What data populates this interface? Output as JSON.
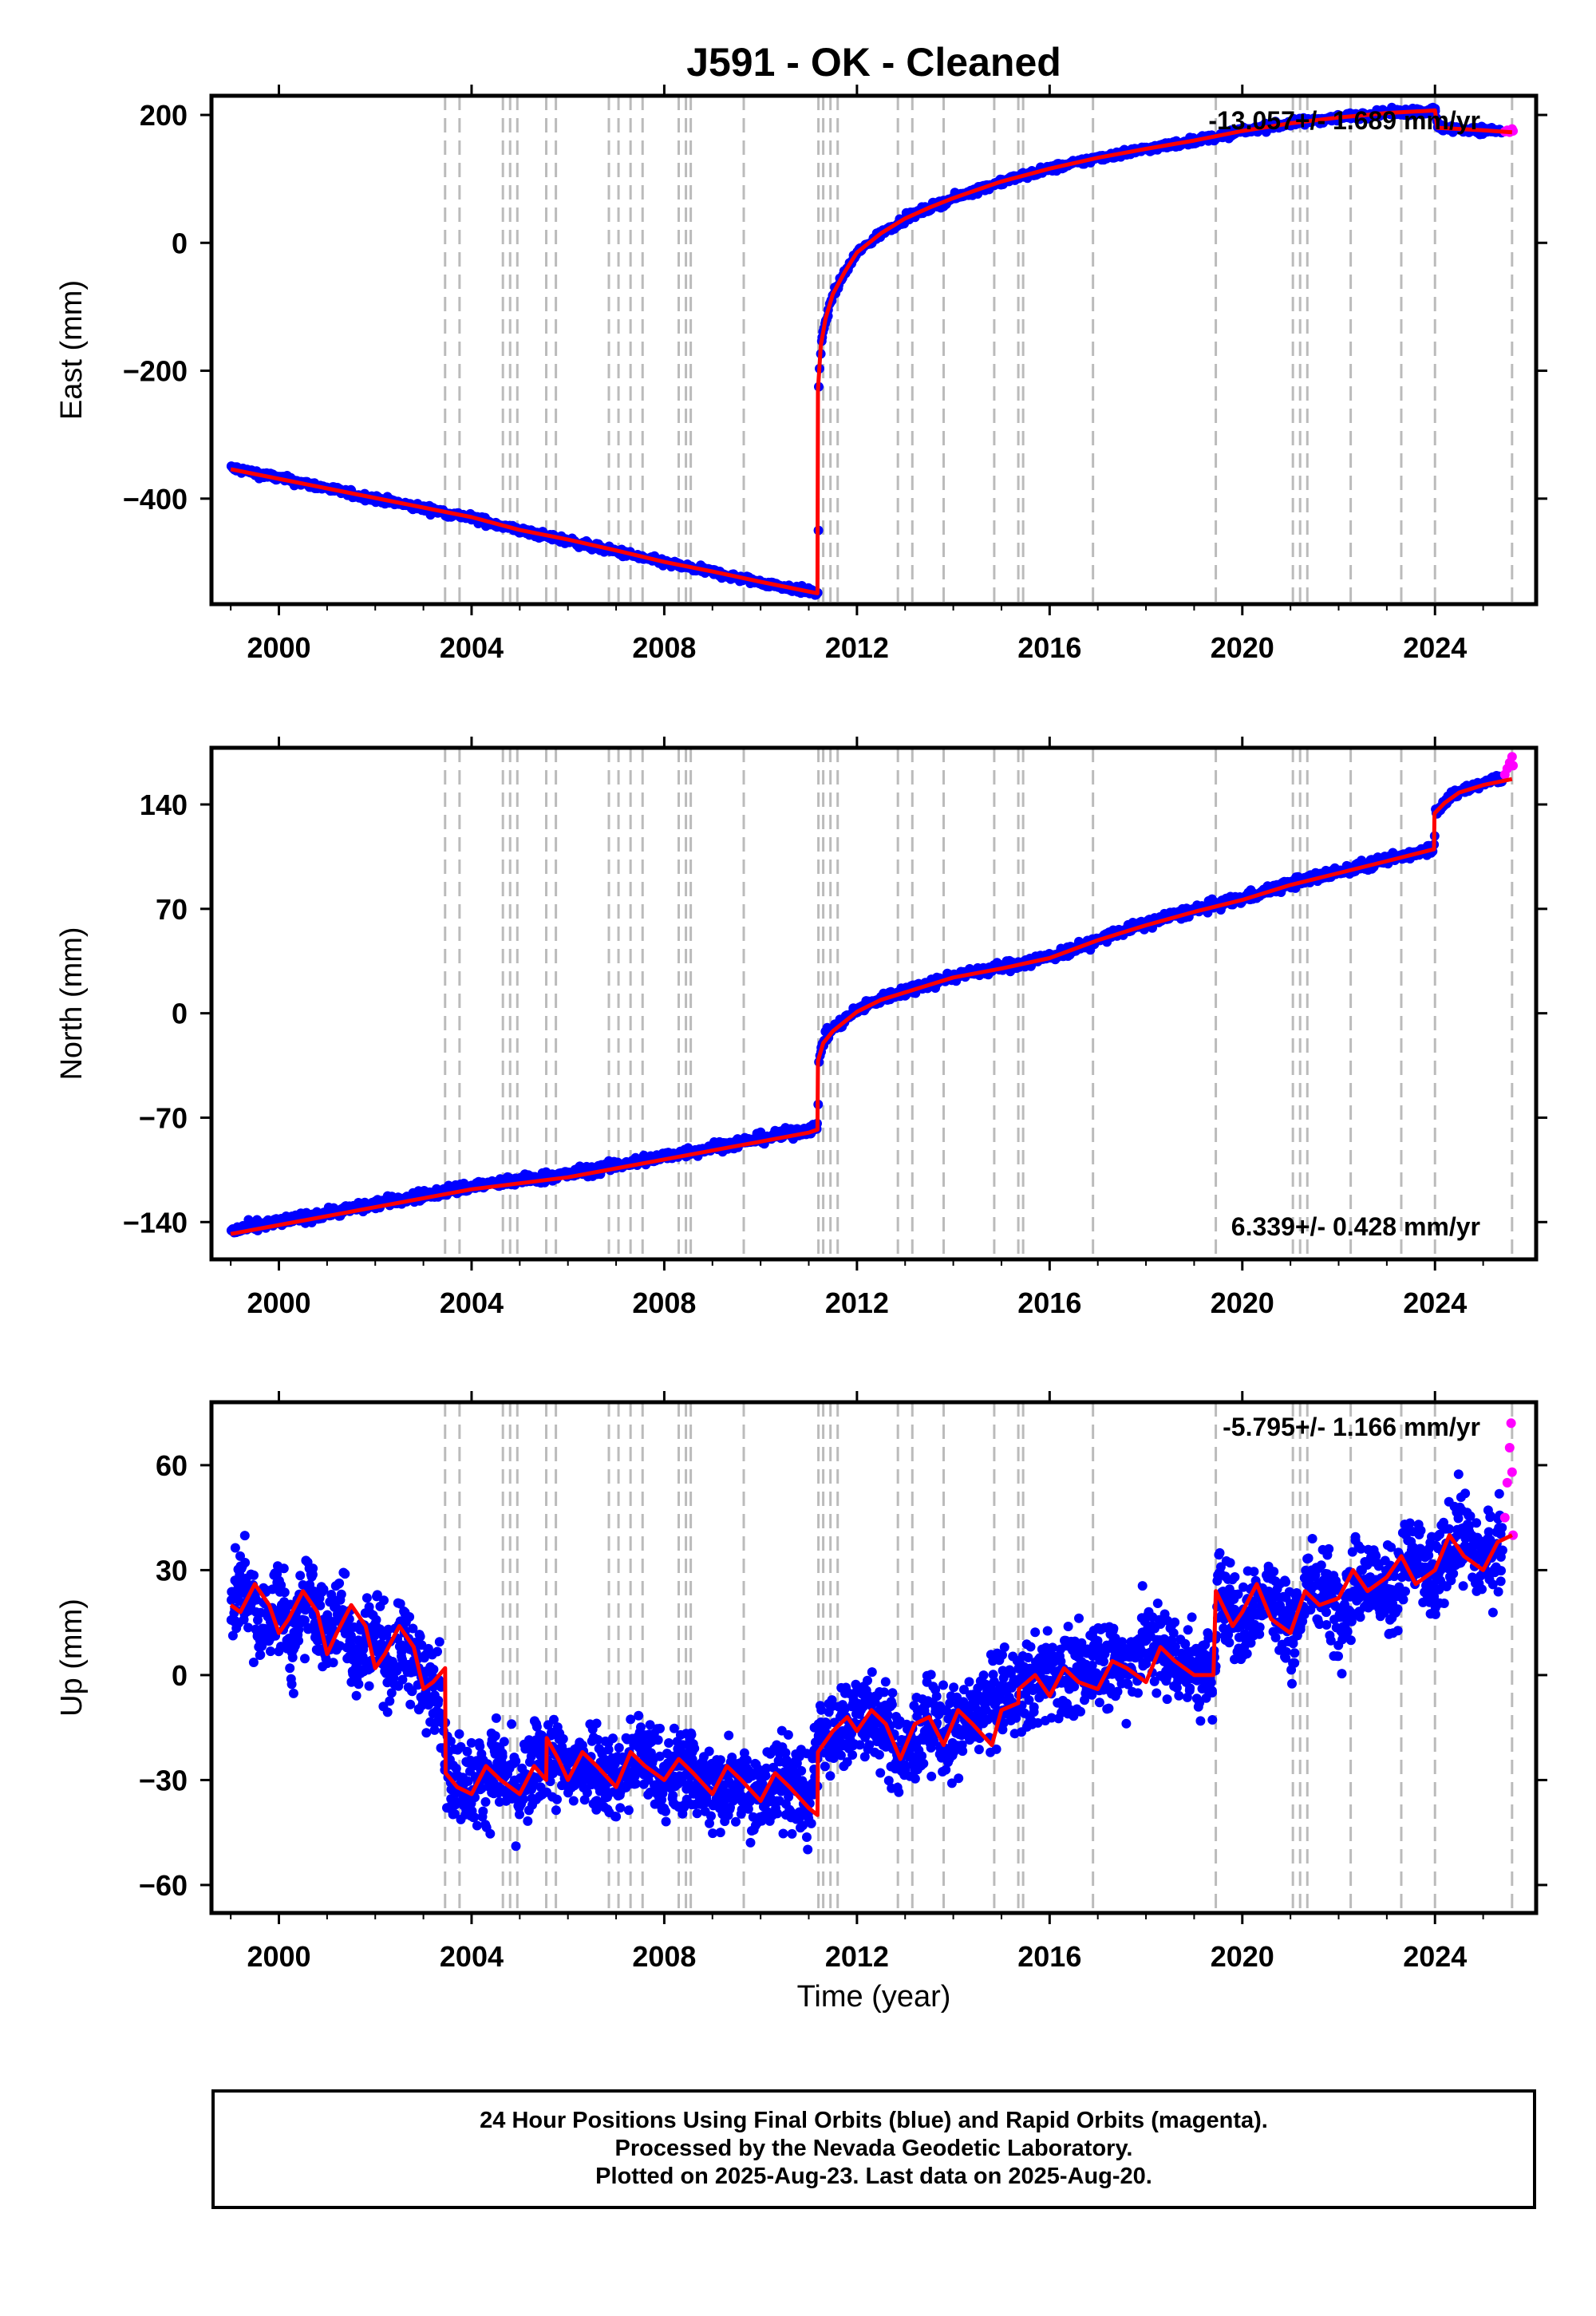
{
  "title": "J591  - OK - Cleaned",
  "colors": {
    "final_orbits": "#0000ff",
    "rapid_orbits": "#ff00ff",
    "model": "#ff0000",
    "event_lines": "#bbbbbb",
    "frame": "#000000"
  },
  "footer": {
    "line1": "24 Hour Positions Using Final Orbits (blue) and Rapid Orbits (magenta).",
    "line2": "Processed by the Nevada Geodetic Laboratory.",
    "line3": "Plotted on 2025-Aug-23. Last data on 2025-Aug-20."
  },
  "chart_data": [
    {
      "type": "scatter",
      "panel": "east",
      "ylabel": "East (mm)",
      "xlabel": "",
      "rate_label": "-13.057+/- 1.689 mm/yr",
      "xlim": [
        1998.6,
        2026.1
      ],
      "ylim": [
        -565,
        230
      ],
      "xticks": [
        2000,
        2004,
        2008,
        2012,
        2016,
        2020,
        2024
      ],
      "yticks": [
        200,
        0,
        -200,
        -400
      ],
      "ytick_labels": [
        "200",
        "0",
        "−200",
        "−400"
      ],
      "series": [
        {
          "kind": "final",
          "x": [
            1999.0,
            1999.5,
            2000.0,
            2000.5,
            2001.0,
            2001.5,
            2002.0,
            2002.5,
            2003.0,
            2003.5,
            2004.0,
            2004.5,
            2005.0,
            2005.5,
            2006.0,
            2006.5,
            2007.0,
            2007.5,
            2008.0,
            2008.5,
            2009.0,
            2009.5,
            2010.0,
            2010.5,
            2011.0,
            2011.18,
            2011.2,
            2011.25,
            2011.35,
            2011.5,
            2011.75,
            2012.0,
            2012.5,
            2013.0,
            2013.5,
            2014.0,
            2014.5,
            2015.0,
            2015.5,
            2016.0,
            2016.5,
            2017.0,
            2017.5,
            2018.0,
            2018.5,
            2019.0,
            2019.5,
            2020.0,
            2020.5,
            2021.0,
            2021.5,
            2022.0,
            2022.5,
            2023.0,
            2023.5,
            2024.0,
            2024.05,
            2024.5,
            2025.0,
            2025.4
          ],
          "y": [
            -352,
            -360,
            -368,
            -376,
            -384,
            -393,
            -400,
            -408,
            -415,
            -423,
            -430,
            -440,
            -450,
            -458,
            -466,
            -475,
            -483,
            -492,
            -500,
            -508,
            -515,
            -524,
            -531,
            -538,
            -545,
            -548,
            -230,
            -160,
            -120,
            -80,
            -45,
            -15,
            15,
            38,
            55,
            70,
            83,
            96,
            106,
            116,
            124,
            133,
            140,
            147,
            153,
            160,
            166,
            175,
            181,
            187,
            192,
            196,
            200,
            203,
            205,
            207,
            180,
            178,
            176,
            175
          ]
        },
        {
          "kind": "rapid",
          "x": [
            2025.45,
            2025.5,
            2025.55,
            2025.6,
            2025.62
          ],
          "y": [
            174,
            176,
            173,
            178,
            175
          ]
        },
        {
          "kind": "model",
          "x": [
            1999.0,
            2000.0,
            2001.0,
            2002.0,
            2003.0,
            2004.0,
            2005.0,
            2006.0,
            2007.0,
            2008.0,
            2009.0,
            2010.0,
            2011.18,
            2011.19,
            2011.25,
            2011.35,
            2011.5,
            2011.75,
            2012.0,
            2012.5,
            2013.0,
            2013.5,
            2014.0,
            2014.5,
            2015.0,
            2015.5,
            2016.0,
            2017.0,
            2018.0,
            2019.0,
            2020.0,
            2021.0,
            2022.0,
            2023.0,
            2024.0,
            2024.05,
            2025.0,
            2025.6
          ],
          "y": [
            -354,
            -369,
            -384,
            -399,
            -414,
            -429,
            -449,
            -464,
            -481,
            -499,
            -514,
            -530,
            -548,
            -230,
            -160,
            -118,
            -80,
            -45,
            -15,
            15,
            38,
            55,
            70,
            83,
            96,
            106,
            116,
            133,
            147,
            160,
            175,
            187,
            196,
            203,
            207,
            180,
            176,
            173
          ]
        }
      ]
    },
    {
      "type": "scatter",
      "panel": "north",
      "ylabel": "North (mm)",
      "xlabel": "",
      "rate_label": "6.339+/- 0.428 mm/yr",
      "xlim": [
        1998.6,
        2026.1
      ],
      "ylim": [
        -165,
        178
      ],
      "xticks": [
        2000,
        2004,
        2008,
        2012,
        2016,
        2020,
        2024
      ],
      "yticks": [
        140,
        70,
        0,
        -70,
        -140
      ],
      "ytick_labels": [
        "140",
        "70",
        "0",
        "−70",
        "−140"
      ],
      "series": [
        {
          "kind": "final",
          "x": [
            1999.0,
            1999.5,
            2000.0,
            2000.5,
            2001.0,
            2001.5,
            2002.0,
            2002.5,
            2003.0,
            2003.5,
            2004.0,
            2004.5,
            2005.0,
            2005.5,
            2006.0,
            2006.5,
            2007.0,
            2007.5,
            2008.0,
            2008.5,
            2009.0,
            2009.5,
            2010.0,
            2010.5,
            2011.0,
            2011.18,
            2011.2,
            2011.3,
            2011.5,
            2012.0,
            2012.5,
            2013.0,
            2013.5,
            2014.0,
            2014.5,
            2015.0,
            2015.5,
            2016.0,
            2016.5,
            2017.0,
            2017.5,
            2018.0,
            2018.5,
            2019.0,
            2019.5,
            2020.0,
            2020.5,
            2021.0,
            2021.5,
            2022.0,
            2022.5,
            2023.0,
            2023.5,
            2023.98,
            2024.0,
            2024.2,
            2024.5,
            2025.0,
            2025.4
          ],
          "y": [
            -146,
            -143,
            -140,
            -137,
            -134,
            -131,
            -128,
            -125,
            -122,
            -119,
            -116,
            -114,
            -112,
            -110,
            -108,
            -105,
            -102,
            -99,
            -96,
            -93,
            -90,
            -87,
            -84,
            -81,
            -78,
            -76,
            -30,
            -18,
            -10,
            2,
            10,
            15,
            20,
            25,
            28,
            31,
            34,
            38,
            43,
            49,
            55,
            60,
            65,
            69,
            73,
            77,
            82,
            87,
            91,
            95,
            99,
            103,
            107,
            112,
            135,
            142,
            149,
            154,
            158
          ]
        },
        {
          "kind": "rapid",
          "x": [
            2025.45,
            2025.5,
            2025.55,
            2025.6,
            2025.62
          ],
          "y": [
            160,
            164,
            168,
            172,
            166
          ]
        },
        {
          "kind": "model",
          "x": [
            1999.0,
            2000.0,
            2001.0,
            2002.0,
            2003.0,
            2004.0,
            2005.0,
            2006.0,
            2007.0,
            2008.0,
            2009.0,
            2010.0,
            2011.0,
            2011.18,
            2011.19,
            2011.3,
            2011.5,
            2012.0,
            2012.5,
            2013.0,
            2013.5,
            2014.0,
            2015.0,
            2016.0,
            2017.0,
            2018.0,
            2019.0,
            2020.0,
            2021.0,
            2022.0,
            2023.0,
            2023.98,
            2023.99,
            2024.2,
            2024.5,
            2025.0,
            2025.6
          ],
          "y": [
            -148,
            -142,
            -136,
            -130,
            -124,
            -118,
            -114,
            -110,
            -104,
            -98,
            -92,
            -86,
            -80,
            -78,
            -32,
            -20,
            -12,
            1,
            9,
            14,
            19,
            24,
            30,
            37,
            49,
            59,
            68,
            76,
            86,
            94,
            102,
            110,
            134,
            141,
            148,
            153,
            157
          ]
        }
      ]
    },
    {
      "type": "scatter",
      "panel": "up",
      "ylabel": "Up (mm)",
      "xlabel": "Time (year)",
      "rate_label": "-5.795+/- 1.166 mm/yr",
      "xlim": [
        1998.6,
        2026.1
      ],
      "ylim": [
        -68,
        78
      ],
      "xticks": [
        2000,
        2004,
        2008,
        2012,
        2016,
        2020,
        2024
      ],
      "yticks": [
        60,
        30,
        0,
        -30,
        -60
      ],
      "ytick_labels": [
        "60",
        "30",
        "0",
        "−30",
        "−60"
      ],
      "series": [
        {
          "kind": "final",
          "x": [
            1999.0,
            1999.3,
            1999.6,
            2000.0,
            2000.3,
            2000.6,
            2001.0,
            2001.3,
            2001.6,
            2002.0,
            2002.3,
            2002.6,
            2003.0,
            2003.3,
            2003.5,
            2003.7,
            2004.0,
            2004.5,
            2005.0,
            2005.5,
            2006.0,
            2006.5,
            2007.0,
            2007.5,
            2008.0,
            2008.5,
            2009.0,
            2009.5,
            2010.0,
            2010.5,
            2011.0,
            2011.2,
            2011.5,
            2012.0,
            2012.5,
            2013.0,
            2013.5,
            2014.0,
            2014.5,
            2015.0,
            2015.5,
            2016.0,
            2016.5,
            2017.0,
            2017.5,
            2018.0,
            2018.5,
            2019.0,
            2019.4,
            2019.5,
            2020.0,
            2020.5,
            2021.0,
            2021.5,
            2022.0,
            2022.5,
            2023.0,
            2023.5,
            2024.0,
            2024.5,
            2025.0,
            2025.4
          ],
          "y": [
            20,
            26,
            12,
            22,
            8,
            24,
            10,
            20,
            4,
            14,
            2,
            10,
            -4,
            0,
            -30,
            -28,
            -32,
            -26,
            -34,
            -22,
            -28,
            -24,
            -30,
            -22,
            -30,
            -26,
            -34,
            -28,
            -36,
            -28,
            -38,
            -16,
            -18,
            -10,
            -14,
            -24,
            -12,
            -18,
            -10,
            -6,
            -4,
            2,
            -2,
            6,
            2,
            10,
            6,
            2,
            0,
            26,
            14,
            24,
            12,
            28,
            18,
            30,
            22,
            34,
            26,
            42,
            32,
            38
          ]
        },
        {
          "kind": "rapid",
          "x": [
            2025.45,
            2025.5,
            2025.55,
            2025.58,
            2025.6,
            2025.62
          ],
          "y": [
            45,
            55,
            65,
            72,
            58,
            40
          ]
        },
        {
          "kind": "model",
          "x": [
            1999.0,
            1999.2,
            1999.5,
            1999.8,
            2000.0,
            2000.2,
            2000.5,
            2000.8,
            2001.0,
            2001.2,
            2001.5,
            2001.8,
            2002.0,
            2002.2,
            2002.5,
            2002.8,
            2003.0,
            2003.2,
            2003.45,
            2003.46,
            2003.7,
            2004.0,
            2004.3,
            2004.6,
            2005.0,
            2005.3,
            2005.55,
            2005.56,
            2005.8,
            2006.0,
            2006.3,
            2006.6,
            2007.0,
            2007.3,
            2007.6,
            2008.0,
            2008.3,
            2008.6,
            2009.0,
            2009.3,
            2009.6,
            2010.0,
            2010.3,
            2010.6,
            2011.0,
            2011.18,
            2011.19,
            2011.5,
            2011.8,
            2012.0,
            2012.3,
            2012.6,
            2012.9,
            2013.2,
            2013.5,
            2013.8,
            2014.1,
            2014.4,
            2014.8,
            2015.0,
            2015.35,
            2015.36,
            2015.7,
            2016.0,
            2016.3,
            2016.6,
            2017.0,
            2017.3,
            2017.6,
            2018.0,
            2018.3,
            2018.6,
            2019.0,
            2019.4,
            2019.45,
            2019.8,
            2020.0,
            2020.3,
            2020.6,
            2021.0,
            2021.3,
            2021.6,
            2022.0,
            2022.3,
            2022.6,
            2023.0,
            2023.3,
            2023.6,
            2024.0,
            2024.3,
            2024.6,
            2025.0,
            2025.3,
            2025.6
          ],
          "y": [
            20,
            18,
            26,
            20,
            12,
            16,
            24,
            18,
            6,
            12,
            20,
            14,
            2,
            6,
            14,
            8,
            -4,
            -2,
            2,
            -28,
            -32,
            -34,
            -26,
            -30,
            -34,
            -26,
            -30,
            -18,
            -24,
            -30,
            -22,
            -26,
            -32,
            -22,
            -26,
            -30,
            -24,
            -28,
            -34,
            -26,
            -30,
            -36,
            -28,
            -32,
            -38,
            -40,
            -22,
            -16,
            -12,
            -16,
            -10,
            -14,
            -24,
            -14,
            -12,
            -20,
            -10,
            -14,
            -20,
            -10,
            -8,
            -4,
            0,
            -6,
            2,
            -2,
            -4,
            4,
            2,
            -2,
            8,
            4,
            0,
            0,
            24,
            14,
            18,
            26,
            16,
            12,
            24,
            20,
            22,
            30,
            24,
            28,
            34,
            26,
            30,
            40,
            34,
            30,
            38,
            40
          ]
        }
      ]
    }
  ],
  "event_lines_years": [
    2003.45,
    2003.75,
    2004.65,
    2004.8,
    2004.95,
    2005.55,
    2005.75,
    2006.85,
    2007.05,
    2007.3,
    2007.55,
    2008.3,
    2008.45,
    2008.55,
    2009.65,
    2011.2,
    2011.3,
    2011.45,
    2011.6,
    2012.85,
    2013.15,
    2013.8,
    2014.85,
    2015.35,
    2015.45,
    2016.9,
    2019.45,
    2021.05,
    2021.2,
    2021.35,
    2022.25,
    2023.3,
    2024.0,
    2025.6
  ]
}
